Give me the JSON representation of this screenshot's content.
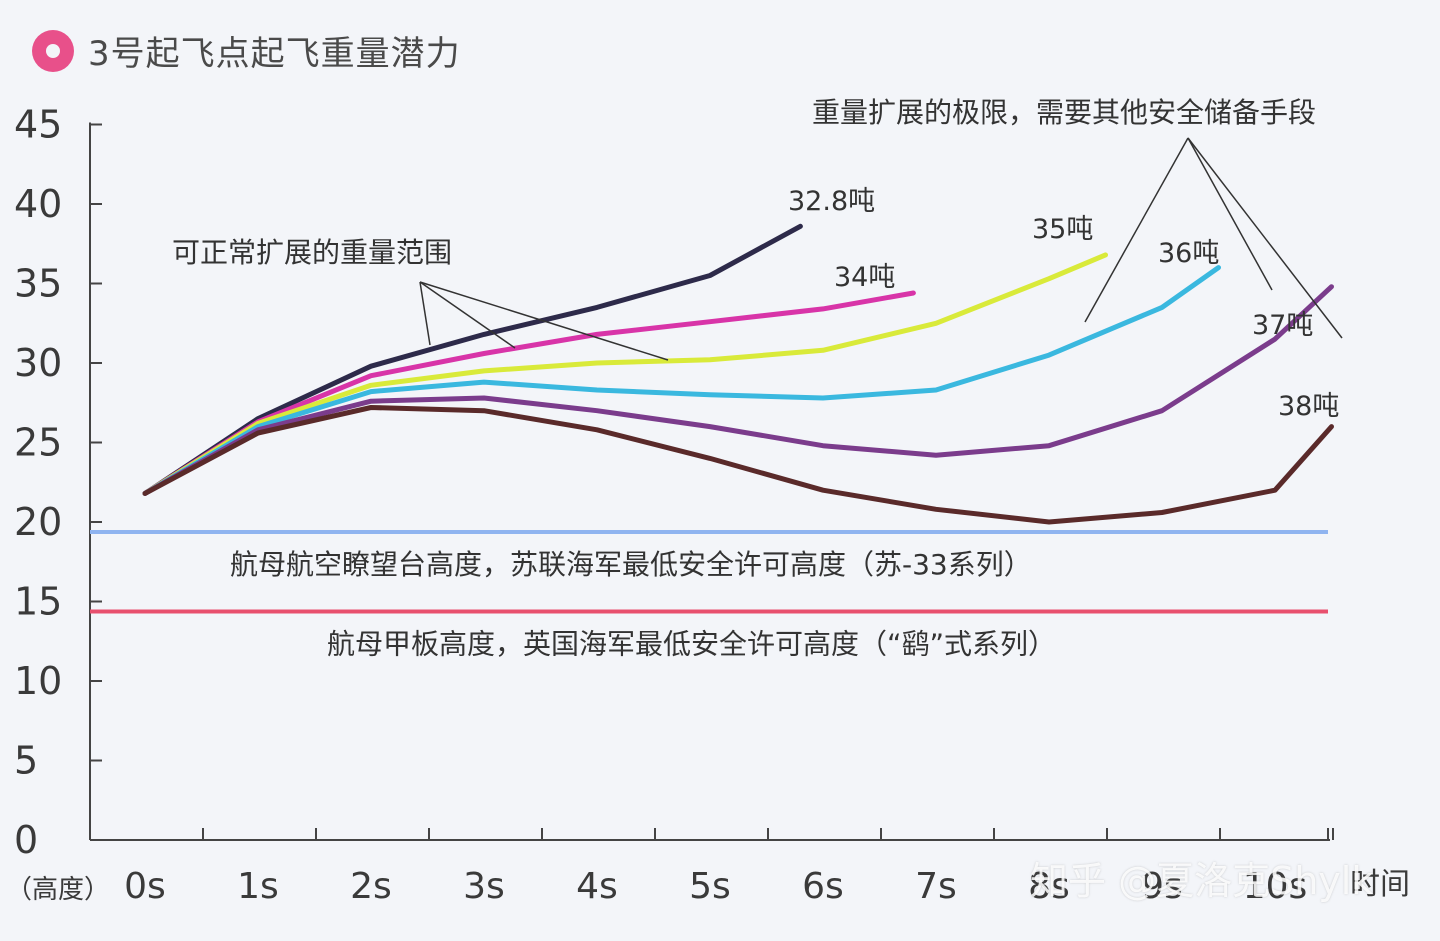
{
  "title": "3号起飞点起飞重量潜力",
  "watermark": "知乎 @夏洛克Shylk",
  "chart_data": {
    "type": "line",
    "title": "3号起飞点起飞重量潜力",
    "ylabel": "（高度）",
    "xlabel": "时间",
    "ylim": [
      0,
      45
    ],
    "xlim": [
      0,
      10.5
    ],
    "yticks": [
      0,
      5,
      10,
      15,
      20,
      25,
      30,
      35,
      40,
      45
    ],
    "xticks": [
      {
        "v": 0,
        "label": "0s"
      },
      {
        "v": 1,
        "label": "1s"
      },
      {
        "v": 2,
        "label": "2s"
      },
      {
        "v": 3,
        "label": "3s"
      },
      {
        "v": 4,
        "label": "4s"
      },
      {
        "v": 5,
        "label": "5s"
      },
      {
        "v": 6,
        "label": "6s"
      },
      {
        "v": 7,
        "label": "7s"
      },
      {
        "v": 8,
        "label": "8s"
      },
      {
        "v": 9,
        "label": "9s"
      },
      {
        "v": 10,
        "label": "10s"
      }
    ],
    "series": [
      {
        "name": "32.8吨",
        "color": "#2d2a4a",
        "x": [
          0,
          1,
          2,
          3,
          4,
          5,
          5.8
        ],
        "y": [
          21.8,
          26.5,
          29.8,
          31.8,
          33.5,
          35.5,
          38.6
        ]
      },
      {
        "name": "34吨",
        "color": "#d834a8",
        "x": [
          0,
          1,
          2,
          3,
          4,
          5,
          6,
          6.8
        ],
        "y": [
          21.8,
          26.3,
          29.2,
          30.6,
          31.8,
          32.6,
          33.4,
          34.4
        ]
      },
      {
        "name": "35吨",
        "color": "#d9ea3a",
        "x": [
          0,
          1,
          2,
          3,
          4,
          5,
          6,
          7,
          8,
          8.5
        ],
        "y": [
          21.8,
          26.2,
          28.6,
          29.5,
          30.0,
          30.2,
          30.8,
          32.5,
          35.3,
          36.8
        ]
      },
      {
        "name": "36吨",
        "color": "#3ab8df",
        "x": [
          0,
          1,
          2,
          3,
          4,
          5,
          6,
          7,
          8,
          9,
          9.5
        ],
        "y": [
          21.8,
          26.0,
          28.2,
          28.8,
          28.3,
          28.0,
          27.8,
          28.3,
          30.5,
          33.5,
          36.0
        ]
      },
      {
        "name": "37吨",
        "color": "#7b3c8c",
        "x": [
          0,
          1,
          2,
          3,
          4,
          5,
          6,
          7,
          8,
          9,
          10,
          10.5
        ],
        "y": [
          21.8,
          25.8,
          27.6,
          27.8,
          27.0,
          26.0,
          24.8,
          24.2,
          24.8,
          27.0,
          31.5,
          34.8
        ]
      },
      {
        "name": "38吨",
        "color": "#5a2a2a",
        "x": [
          0,
          1,
          2,
          3,
          4,
          5,
          6,
          7,
          8,
          9,
          10,
          10.5
        ],
        "y": [
          21.8,
          25.6,
          27.2,
          27.0,
          25.8,
          24.0,
          22.0,
          20.8,
          20.0,
          20.6,
          22.0,
          26.0
        ]
      }
    ],
    "reference_lines": [
      {
        "y": 20,
        "color": "#8fb4f0",
        "label": "航母航空瞭望台高度，苏联海军最低安全许可高度（苏-33系列）"
      },
      {
        "y": 15,
        "color": "#e8506e",
        "label": "航母甲板高度，英国海军最低安全许可高度（“鹞”式系列）"
      }
    ],
    "annotations": {
      "normal": "可正常扩展的重量范围",
      "limit": "重量扩展的极限，需要其他安全储备手段"
    }
  }
}
